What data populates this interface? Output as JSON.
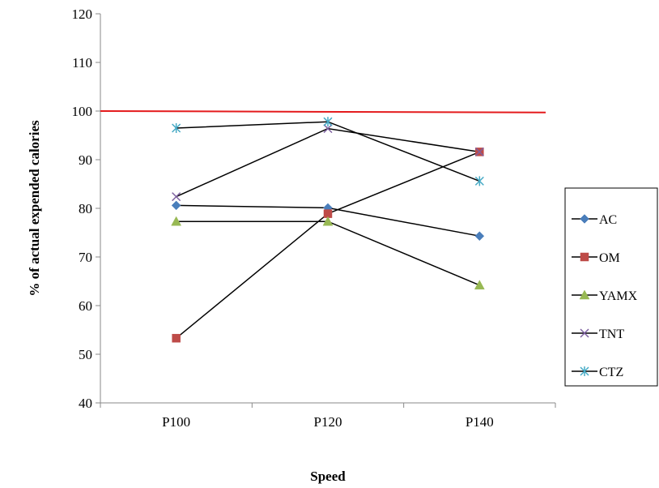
{
  "chart_data": {
    "type": "line",
    "title": "",
    "xlabel": "Speed",
    "ylabel": "% of  actual  expended calories",
    "categories": [
      "P100",
      "P120",
      "P140"
    ],
    "ylim": [
      40,
      120
    ],
    "yticks": [
      40,
      50,
      60,
      70,
      80,
      90,
      100,
      110,
      120
    ],
    "grid": false,
    "legend_position": "right",
    "reference_line": {
      "value": 100,
      "end_value": 99.7,
      "color": "#e41a1c"
    },
    "series": [
      {
        "name": "AC",
        "values": [
          80.6,
          80.1,
          74.3
        ],
        "marker": "diamond",
        "marker_color": "#4a7ebb"
      },
      {
        "name": "OM",
        "values": [
          53.3,
          78.9,
          91.6
        ],
        "marker": "square",
        "marker_color": "#be4b48"
      },
      {
        "name": "YAMX",
        "values": [
          77.3,
          77.3,
          64.2
        ],
        "marker": "triangle",
        "marker_color": "#98b954"
      },
      {
        "name": "TNT",
        "values": [
          82.4,
          96.4,
          91.6
        ],
        "marker": "x",
        "marker_color": "#7d60a0"
      },
      {
        "name": "CTZ",
        "values": [
          96.5,
          97.8,
          85.6
        ],
        "marker": "star",
        "marker_color": "#46aac5"
      }
    ],
    "line_color": "#000000"
  }
}
